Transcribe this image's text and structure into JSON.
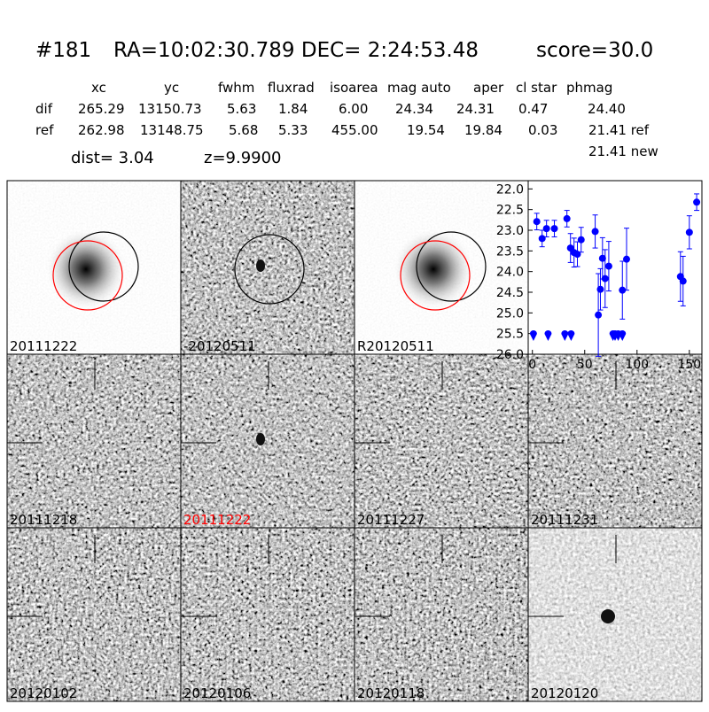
{
  "header": {
    "id": "#181",
    "coords": "RA=10:02:30.789 DEC= 2:24:53.48",
    "score": "score=30.0"
  },
  "table": {
    "columns": [
      "xc",
      "yc",
      "fwhm",
      "fluxrad",
      "isoarea",
      "mag auto",
      "aper",
      "cl star",
      "phmag"
    ],
    "rows": [
      {
        "label": "dif",
        "cells": [
          "265.29",
          "13150.73",
          "5.63",
          "1.84",
          "6.00",
          "24.34",
          "24.31",
          "0.47",
          "24.40"
        ]
      },
      {
        "label": "ref",
        "cells": [
          "262.98",
          "13148.75",
          "5.68",
          "5.33",
          "455.00",
          "19.54",
          "19.84",
          "0.03",
          "21.41 ref"
        ]
      }
    ],
    "extra": "21.41 new"
  },
  "dist": "dist=  3.04",
  "z": "z=9.9900",
  "panels": [
    {
      "label": "20111222"
    },
    {
      "label": "-20120511"
    },
    {
      "label": "R20120511"
    },
    {
      "label": "20111218"
    },
    {
      "label": "20111222",
      "color": "#ff0000"
    },
    {
      "label": "20111227"
    },
    {
      "label": "20111231"
    },
    {
      "label": "20120102"
    },
    {
      "label": "20120106"
    },
    {
      "label": "20120118"
    },
    {
      "label": "20120120"
    }
  ],
  "chart_data": {
    "type": "scatter",
    "xlim": [
      -4,
      162
    ],
    "ylim": [
      21.8,
      26.0
    ],
    "y_inverted": true,
    "xticks": [
      0,
      50,
      100,
      150
    ],
    "yticks": [
      {
        "value": 22,
        "label": "22.0"
      },
      {
        "value": 22.5,
        "label": "22.5"
      },
      {
        "value": 23,
        "label": "23.0"
      },
      {
        "value": 23.5,
        "label": "23.5"
      },
      {
        "value": 24,
        "label": "24.0"
      },
      {
        "value": 24.5,
        "label": "24.5"
      },
      {
        "value": 25,
        "label": "25.0"
      },
      {
        "value": 25.5,
        "label": "25.5"
      },
      {
        "value": 26,
        "label": "26.0"
      }
    ],
    "series": [
      {
        "color": "#0000ff",
        "x": [
          4.2,
          9.3,
          13.5,
          21,
          33,
          36.4,
          39.8,
          43,
          46.6,
          60,
          63,
          65,
          67,
          69.5,
          73,
          86,
          90,
          141.5,
          144,
          150,
          157
        ],
        "values": [
          22.79,
          23.2,
          22.96,
          22.96,
          22.72,
          23.43,
          23.54,
          23.58,
          23.23,
          23.03,
          25.05,
          24.43,
          23.68,
          24.17,
          23.87,
          24.45,
          23.7,
          24.12,
          24.23,
          23.05,
          22.32
        ],
        "errors": [
          0.2,
          0.2,
          0.2,
          0.2,
          0.2,
          0.35,
          0.35,
          0.3,
          0.3,
          0.4,
          1.0,
          0.5,
          0.5,
          0.7,
          0.6,
          0.7,
          0.75,
          0.6,
          0.6,
          0.4,
          0.2
        ]
      },
      {
        "color": "#0000ff",
        "marker": "limit",
        "x": [
          1,
          15,
          31,
          37,
          77,
          79,
          82,
          86
        ],
        "values": [
          25.55,
          25.55,
          25.55,
          25.55,
          25.55,
          25.55,
          25.55,
          25.55
        ]
      }
    ]
  }
}
